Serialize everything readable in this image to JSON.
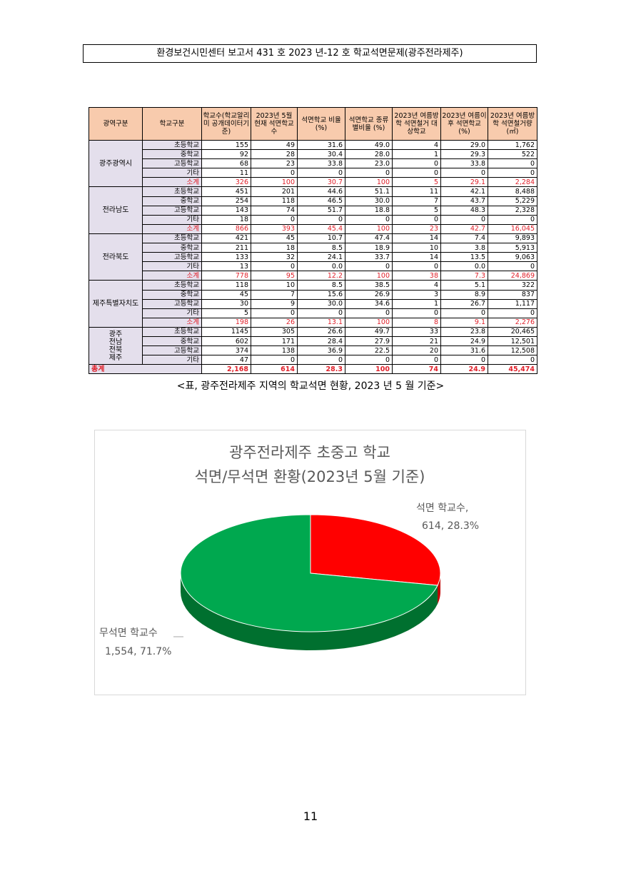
{
  "header": {
    "title": "환경보건시민센터 보고서 431 호 2023 년-12 호 학교석면문제(광주전라제주)"
  },
  "table": {
    "headers": [
      "광역구분",
      "학교구분",
      "학교수(학교알리미 공개데이터기준)",
      "2023년 5월 현재 석면학교수",
      "석면학교 비율(%)",
      "석면학교 종류별비율 (%)",
      "2023년 여름방학 석면철거 대상학교",
      "2023년 여름이후 석면학교(%)",
      "2023년 여름방학 석면철거량 (㎡)"
    ],
    "groups": [
      {
        "region": "광주광역시",
        "rows": [
          {
            "type": "초등학교",
            "cells": [
              "155",
              "49",
              "31.6",
              "49.0",
              "4",
              "29.0",
              "1,762"
            ]
          },
          {
            "type": "중학교",
            "cells": [
              "92",
              "28",
              "30.4",
              "28.0",
              "1",
              "29.3",
              "522"
            ]
          },
          {
            "type": "고등학교",
            "cells": [
              "68",
              "23",
              "33.8",
              "23.0",
              "0",
              "33.8",
              "0"
            ]
          },
          {
            "type": "기타",
            "cells": [
              "11",
              "0",
              "0",
              "0",
              "0",
              "0",
              "0"
            ]
          },
          {
            "type": "소계",
            "subtotal": true,
            "cells": [
              "326",
              "100",
              "30.7",
              "100",
              "5",
              "29.1",
              "2,284"
            ]
          }
        ]
      },
      {
        "region": "전라남도",
        "rows": [
          {
            "type": "초등학교",
            "cells": [
              "451",
              "201",
              "44.6",
              "51.1",
              "11",
              "42.1",
              "8,488"
            ]
          },
          {
            "type": "중학교",
            "cells": [
              "254",
              "118",
              "46.5",
              "30.0",
              "7",
              "43.7",
              "5,229"
            ]
          },
          {
            "type": "고등학교",
            "cells": [
              "143",
              "74",
              "51.7",
              "18.8",
              "5",
              "48.3",
              "2,328"
            ]
          },
          {
            "type": "기타",
            "cells": [
              "18",
              "0",
              "0",
              "0",
              "0",
              "0",
              "0"
            ]
          },
          {
            "type": "소계",
            "subtotal": true,
            "cells": [
              "866",
              "393",
              "45.4",
              "100",
              "23",
              "42.7",
              "16,045"
            ]
          }
        ]
      },
      {
        "region": "전라북도",
        "rows": [
          {
            "type": "초등학교",
            "cells": [
              "421",
              "45",
              "10.7",
              "47.4",
              "14",
              "7.4",
              "9,893"
            ]
          },
          {
            "type": "중학교",
            "cells": [
              "211",
              "18",
              "8.5",
              "18.9",
              "10",
              "3.8",
              "5,913"
            ]
          },
          {
            "type": "고등학교",
            "cells": [
              "133",
              "32",
              "24.1",
              "33.7",
              "14",
              "13.5",
              "9,063"
            ]
          },
          {
            "type": "기타",
            "cells": [
              "13",
              "0",
              "0.0",
              "0",
              "0",
              "0.0",
              "0"
            ]
          },
          {
            "type": "소계",
            "subtotal": true,
            "cells": [
              "778",
              "95",
              "12.2",
              "100",
              "38",
              "7.3",
              "24,869"
            ]
          }
        ]
      },
      {
        "region": "제주특별자치도",
        "rows": [
          {
            "type": "초등학교",
            "cells": [
              "118",
              "10",
              "8.5",
              "38.5",
              "4",
              "5.1",
              "322"
            ]
          },
          {
            "type": "중학교",
            "cells": [
              "45",
              "7",
              "15.6",
              "26.9",
              "3",
              "8.9",
              "837"
            ]
          },
          {
            "type": "고등학교",
            "cells": [
              "30",
              "9",
              "30.0",
              "34.6",
              "1",
              "26.7",
              "1,117"
            ]
          },
          {
            "type": "기타",
            "cells": [
              "5",
              "0",
              "0",
              "0",
              "0",
              "0",
              "0"
            ]
          },
          {
            "type": "소계",
            "subtotal": true,
            "cells": [
              "198",
              "26",
              "13.1",
              "100",
              "8",
              "9.1",
              "2,276"
            ]
          }
        ]
      },
      {
        "region": "광주 전남 전북 제주",
        "rows": [
          {
            "type": "초등학교",
            "cells": [
              "1145",
              "305",
              "26.6",
              "49.7",
              "33",
              "23.8",
              "20,465"
            ]
          },
          {
            "type": "중학교",
            "cells": [
              "602",
              "171",
              "28.4",
              "27.9",
              "21",
              "24.9",
              "12,501"
            ]
          },
          {
            "type": "고등학교",
            "cells": [
              "374",
              "138",
              "36.9",
              "22.5",
              "20",
              "31.6",
              "12,508"
            ]
          },
          {
            "type": "기타",
            "cells": [
              "47",
              "0",
              "0",
              "0",
              "0",
              "0",
              "0"
            ]
          }
        ]
      }
    ],
    "total": {
      "label": "총계",
      "cells": [
        "2,168",
        "614",
        "28.3",
        "100",
        "74",
        "24.9",
        "45,474"
      ]
    }
  },
  "caption": "<표, 광주전라제주 지역의 학교석면 현황, 2023 년 5 월 기준>",
  "chart_data": {
    "type": "pie",
    "title": "광주전라제주 초중고 학교",
    "subtitle": "석면/무석면 환황(2023년 5월 기준)",
    "slices": [
      {
        "label": "석면 학교수,",
        "value": 614,
        "percent": 28.3,
        "value_label": "614, 28.3%",
        "color": "#ff0000",
        "side_color": "#c00000"
      },
      {
        "label": "무석면 학교수",
        "value": 1554,
        "percent": 71.7,
        "value_label": "1,554, 71.7%",
        "color": "#00a84f",
        "side_color": "#00702f"
      }
    ]
  },
  "page_number": "11"
}
